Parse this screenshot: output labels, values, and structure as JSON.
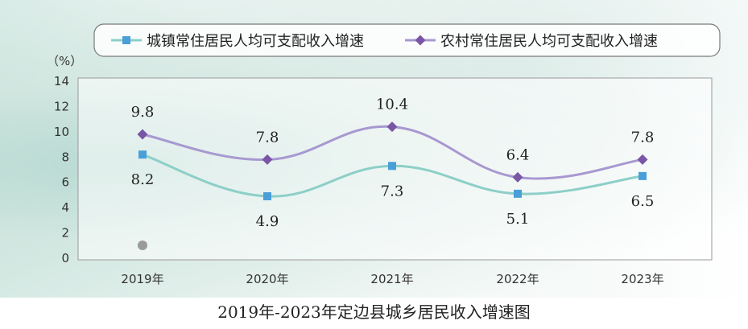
{
  "chart_data": {
    "type": "line",
    "title": "2019年-2023年定边县城乡居民收入增速图",
    "unit": "（%）",
    "categories": [
      "2019年",
      "2020年",
      "2021年",
      "2022年",
      "2023年"
    ],
    "ylim": [
      0,
      14
    ],
    "yticks": [
      0,
      2,
      4,
      6,
      8,
      10,
      12,
      14
    ],
    "legend_position": "top",
    "series": [
      {
        "name": "城镇常住居民人均可支配收入增速",
        "values": [
          8.2,
          4.9,
          7.3,
          5.1,
          6.5
        ],
        "color": "#8ccfc8",
        "marker": "square",
        "marker_color": "#4a9fd8",
        "label_position": "below"
      },
      {
        "name": "农村常住居民人均可支配收入增速",
        "values": [
          9.8,
          7.8,
          10.4,
          6.4,
          7.8
        ],
        "color": "#a898d0",
        "marker": "diamond",
        "marker_color": "#7a56a6",
        "label_position": "above"
      }
    ]
  }
}
